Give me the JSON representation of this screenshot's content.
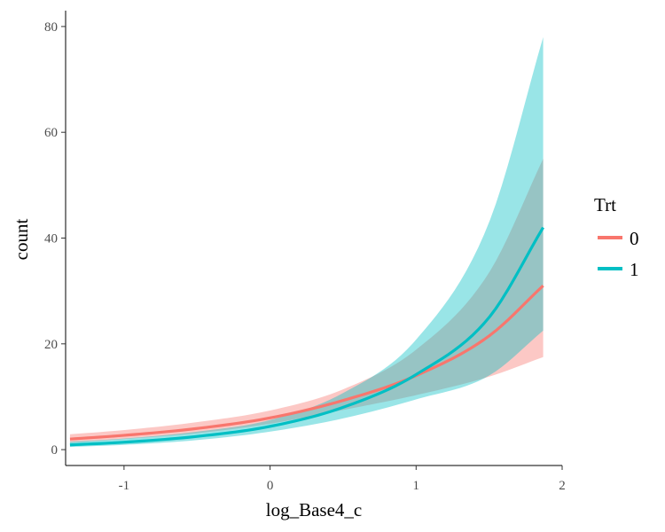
{
  "chart_data": {
    "type": "line",
    "xlabel": "log_Base4_c",
    "ylabel": "count",
    "xlim": [
      -1.4,
      2.0
    ],
    "ylim": [
      -3,
      83
    ],
    "grid": false,
    "x_ticks": [
      -1,
      0,
      1,
      2
    ],
    "x_tick_labels": [
      "-1",
      "0",
      "1",
      "2"
    ],
    "y_ticks": [
      0,
      20,
      40,
      60,
      80
    ],
    "y_tick_labels": [
      "0",
      "20",
      "40",
      "60",
      "80"
    ],
    "legend": {
      "title": "Trt",
      "position": "right"
    },
    "series": [
      {
        "name": "0",
        "color": "#F8766D",
        "band_color": "#F8766D",
        "x": [
          -1.37,
          -1.0,
          -0.5,
          0.0,
          0.5,
          1.0,
          1.5,
          1.87
        ],
        "y": [
          2.0,
          2.7,
          4.0,
          6.0,
          9.3,
          14.0,
          21.5,
          31.0
        ],
        "lower": [
          1.3,
          2.0,
          3.1,
          4.9,
          7.5,
          10.3,
          13.8,
          17.5
        ],
        "upper": [
          2.9,
          3.7,
          5.2,
          7.4,
          11.4,
          18.9,
          33.5,
          55.0
        ]
      },
      {
        "name": "1",
        "color": "#00BFC4",
        "band_color": "#00BFC4",
        "x": [
          -1.37,
          -1.0,
          -0.5,
          0.0,
          0.5,
          1.0,
          1.5,
          1.87
        ],
        "y": [
          0.9,
          1.4,
          2.5,
          4.4,
          8.0,
          14.2,
          25.0,
          42.0
        ],
        "lower": [
          0.5,
          0.9,
          1.8,
          3.4,
          5.9,
          9.5,
          14.0,
          22.5
        ],
        "upper": [
          1.5,
          2.1,
          3.4,
          5.6,
          10.7,
          20.8,
          43.0,
          78.0
        ]
      }
    ]
  }
}
